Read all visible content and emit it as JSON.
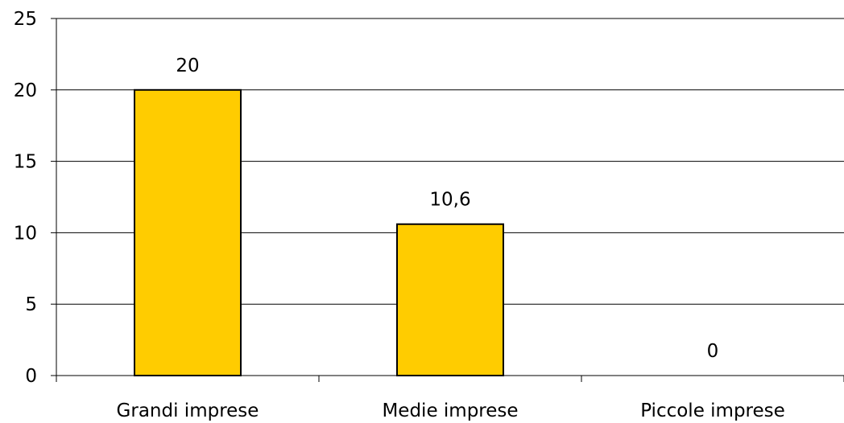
{
  "chart_data": {
    "type": "bar",
    "categories": [
      "Grandi imprese",
      "Medie imprese",
      "Piccole imprese"
    ],
    "values": [
      20,
      10.6,
      0
    ],
    "data_labels": [
      "20",
      "10,6",
      "0"
    ],
    "y_ticks": [
      0,
      5,
      10,
      15,
      20,
      25
    ],
    "y_tick_labels": [
      "0",
      "5",
      "10",
      "15",
      "20",
      "25"
    ],
    "ylim": [
      0,
      25
    ],
    "grid": true,
    "legend": "none",
    "colors": {
      "bar_fill": "#FFCC00",
      "bar_stroke": "#000000",
      "grid": "#000000",
      "axis": "#000000",
      "background": "#FFFFFF"
    }
  }
}
